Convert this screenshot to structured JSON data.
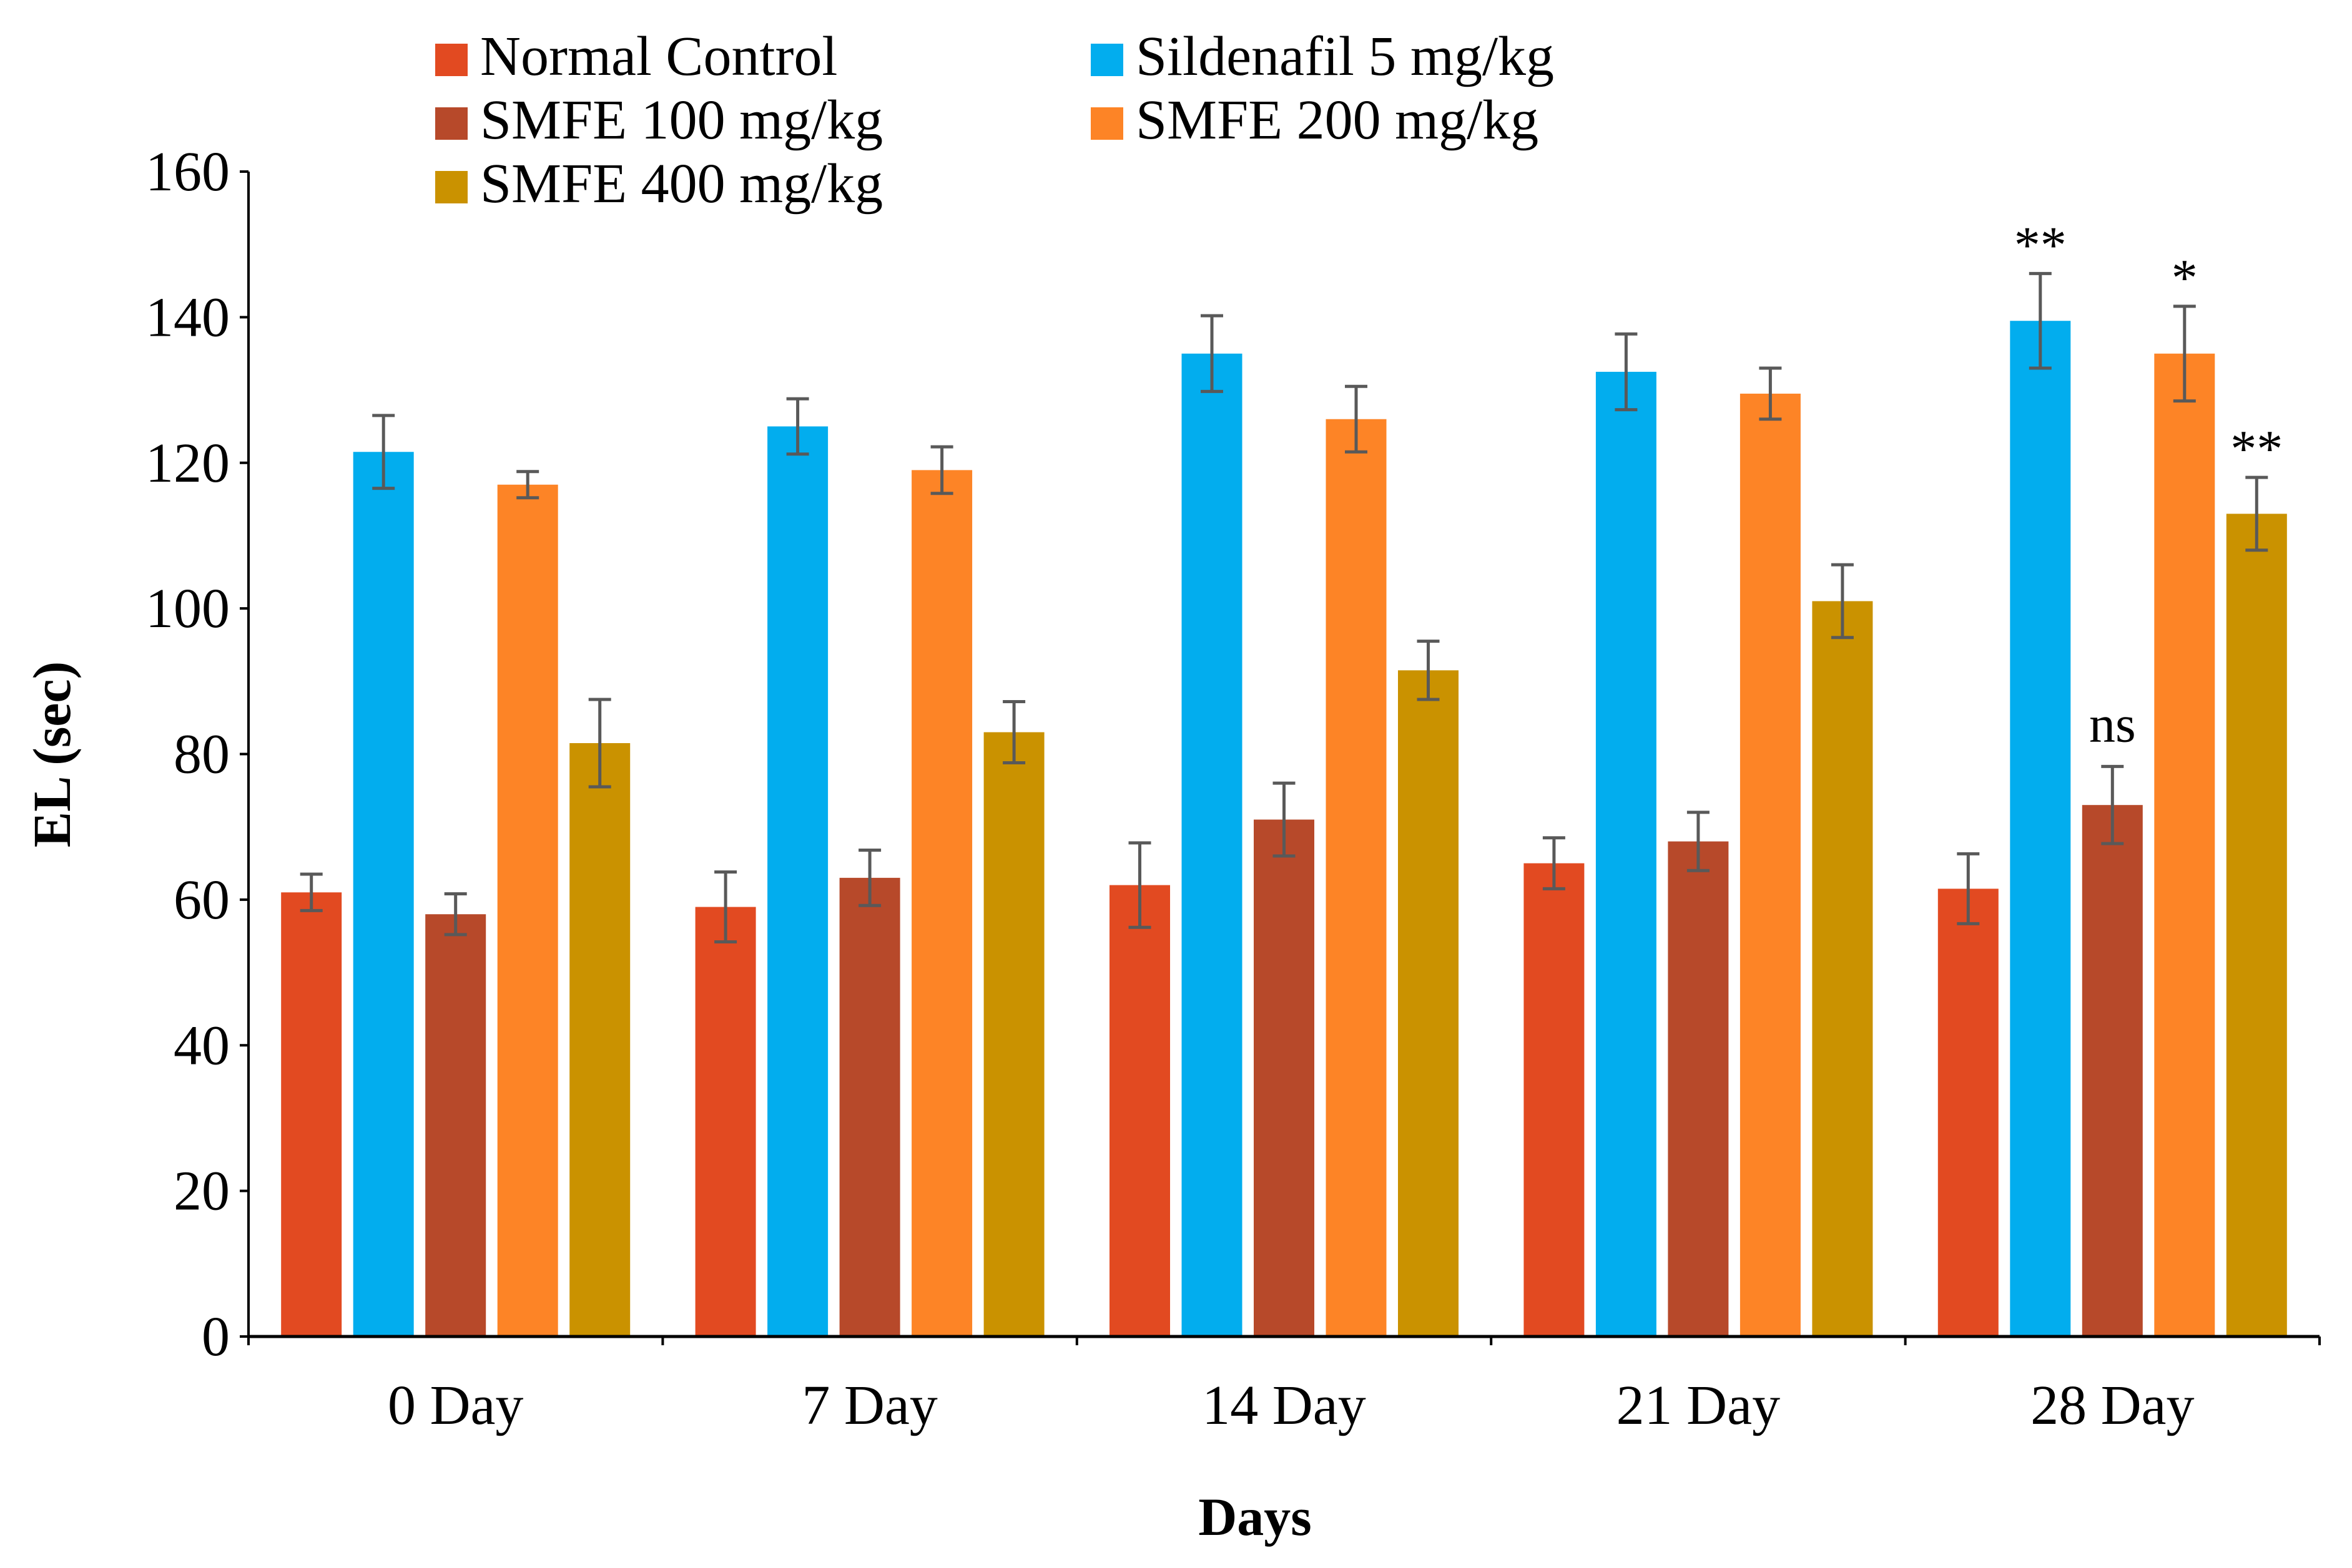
{
  "chart_data": {
    "type": "bar",
    "title": "",
    "xlabel": "Days",
    "ylabel": "EL (sec)",
    "ylim": [
      0,
      160
    ],
    "yticks": [
      0,
      20,
      40,
      60,
      80,
      100,
      120,
      140,
      160
    ],
    "grid": false,
    "legend_position": "top-left",
    "categories": [
      "0 Day",
      "7 Day",
      "14 Day",
      "21 Day",
      "28 Day"
    ],
    "series": [
      {
        "name": "Normal Control",
        "color": "#E24A21",
        "values": [
          61,
          59,
          62,
          65,
          61.5
        ],
        "errors": [
          2.5,
          4.8,
          5.8,
          3.5,
          4.8
        ],
        "annotations": [
          "",
          "",
          "",
          "",
          ""
        ]
      },
      {
        "name": "Sildenafil 5 mg/kg",
        "color": "#02ADEE",
        "values": [
          121.5,
          125,
          135,
          132.5,
          139.5
        ],
        "errors": [
          5,
          3.8,
          5.2,
          5.2,
          6.5
        ],
        "annotations": [
          "",
          "",
          "",
          "",
          "**"
        ]
      },
      {
        "name": "SMFE 100 mg/kg",
        "color": "#B7492A",
        "values": [
          58,
          63,
          71,
          68,
          73
        ],
        "errors": [
          2.8,
          3.8,
          5,
          4,
          5.3
        ],
        "annotations": [
          "",
          "",
          "",
          "",
          "ns"
        ]
      },
      {
        "name": "SMFE 200 mg/kg",
        "color": "#FD8426",
        "values": [
          117,
          119,
          126,
          129.5,
          135
        ],
        "errors": [
          1.8,
          3.2,
          4.5,
          3.5,
          6.5
        ],
        "annotations": [
          "",
          "",
          "",
          "",
          "*"
        ]
      },
      {
        "name": "SMFE 400 mg/kg",
        "color": "#CA9200",
        "values": [
          81.5,
          83,
          91.5,
          101,
          113
        ],
        "errors": [
          6,
          4.2,
          4,
          5,
          5
        ]
      }
    ],
    "series_5_annotations": [
      "",
      "",
      "",
      "",
      "**"
    ]
  },
  "colors": {
    "axis": "#000000",
    "error_bar": "#595959"
  }
}
